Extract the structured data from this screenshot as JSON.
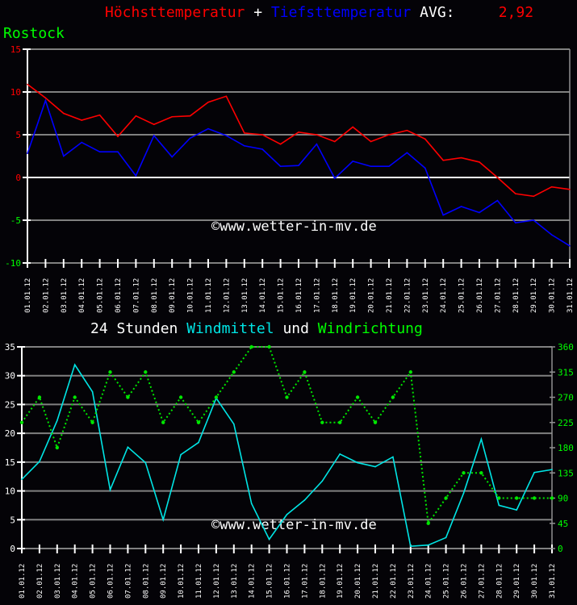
{
  "colors": {
    "max": "#ff0000",
    "min": "#0000ff",
    "wind": "#00e5e5",
    "dir": "#00e600",
    "grid": "#808080",
    "text_white": "#ffffff",
    "text_green": "#00ff00"
  },
  "header": {
    "max_label": "Höchsttemperatur",
    "plus": "+",
    "min_label": "Tiefsttemperatur",
    "avg_label": "AVG:",
    "avg_value": "2,92",
    "station": "Rostock"
  },
  "watermark": "©www.wetter-in-mv.de",
  "chart_data": [
    {
      "type": "line",
      "title": "",
      "ylim": [
        -10,
        15
      ],
      "yticks": [
        15,
        10,
        5,
        0,
        -5,
        -10
      ],
      "grid": true,
      "categories": [
        "01.01.12",
        "02.01.12",
        "03.01.12",
        "04.01.12",
        "05.01.12",
        "06.01.12",
        "07.01.12",
        "08.01.12",
        "09.01.12",
        "10.01.12",
        "11.01.12",
        "12.01.12",
        "13.01.12",
        "14.01.12",
        "15.01.12",
        "16.01.12",
        "17.01.12",
        "18.01.12",
        "19.01.12",
        "20.01.12",
        "21.01.12",
        "22.01.12",
        "23.01.12",
        "24.01.12",
        "25.01.12",
        "26.01.12",
        "27.01.12",
        "28.01.12",
        "29.01.12",
        "30.01.12",
        "31.01.12"
      ],
      "series": [
        {
          "name": "Höchsttemperatur",
          "color": "#ff0000",
          "values": [
            10.9,
            9.3,
            7.5,
            6.7,
            7.3,
            4.8,
            7.2,
            6.2,
            7.1,
            7.2,
            8.8,
            9.5,
            5.2,
            5.0,
            3.9,
            5.3,
            5.0,
            4.2,
            5.9,
            4.2,
            5.0,
            5.5,
            4.5,
            2.0,
            2.3,
            1.8,
            0.0,
            -1.9,
            -2.2,
            -1.1,
            -1.4
          ]
        },
        {
          "name": "Tiefsttemperatur",
          "color": "#0000ff",
          "values": [
            2.8,
            9.0,
            2.5,
            4.1,
            3.0,
            3.0,
            0.2,
            4.9,
            2.4,
            4.6,
            5.7,
            4.9,
            3.7,
            3.3,
            1.3,
            1.4,
            3.9,
            -0.1,
            1.9,
            1.3,
            1.3,
            2.9,
            1.1,
            -4.4,
            -3.4,
            -4.1,
            -2.7,
            -5.3,
            -5.0,
            -6.7,
            -8.0
          ]
        }
      ]
    },
    {
      "type": "line",
      "title_parts": [
        "24 Stunden",
        "Windmittel",
        "und",
        "Windrichtung"
      ],
      "ylim": [
        0,
        35
      ],
      "yticks": [
        35,
        30,
        25,
        20,
        15,
        10,
        5,
        0
      ],
      "y2lim": [
        0,
        360
      ],
      "y2ticks": [
        360,
        315,
        270,
        225,
        180,
        135,
        90,
        45,
        0
      ],
      "grid": true,
      "categories": [
        "01.01.12",
        "02.01.12",
        "03.01.12",
        "04.01.12",
        "05.01.12",
        "06.01.12",
        "07.01.12",
        "08.01.12",
        "09.01.12",
        "10.01.12",
        "11.01.12",
        "12.01.12",
        "13.01.12",
        "14.01.12",
        "15.01.12",
        "16.01.12",
        "17.01.12",
        "18.01.12",
        "19.01.12",
        "20.01.12",
        "21.01.12",
        "22.01.12",
        "23.01.12",
        "24.01.12",
        "25.01.12",
        "26.01.12",
        "27.01.12",
        "28.01.12",
        "29.01.12",
        "30.01.12",
        "31.01.12"
      ],
      "series": [
        {
          "name": "Windmittel",
          "color": "#00e5e5",
          "axis": "left",
          "values": [
            12.0,
            15.1,
            22.2,
            31.9,
            27.2,
            10.2,
            17.6,
            14.9,
            5.0,
            16.3,
            18.4,
            26.1,
            21.6,
            7.8,
            1.6,
            5.9,
            8.4,
            11.7,
            16.4,
            14.9,
            14.2,
            15.9,
            0.4,
            0.6,
            1.9,
            9.6,
            19.0,
            7.5,
            6.7,
            13.2,
            13.7
          ]
        },
        {
          "name": "Windrichtung",
          "color": "#00e600",
          "axis": "right",
          "style": "dotted",
          "values": [
            225,
            270,
            180,
            270,
            225,
            315,
            270,
            315,
            225,
            270,
            225,
            270,
            315,
            360,
            360,
            270,
            315,
            225,
            225,
            270,
            225,
            270,
            315,
            45,
            90,
            135,
            135,
            90,
            90,
            90,
            90
          ]
        }
      ]
    }
  ]
}
